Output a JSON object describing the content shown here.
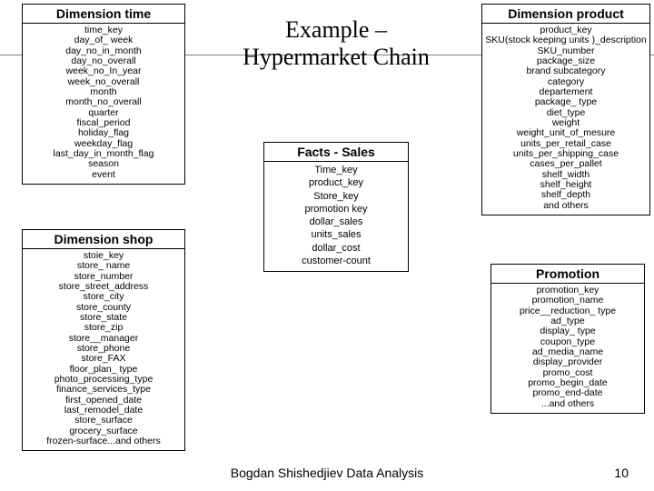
{
  "title": "Example –\nHypermarket Chain",
  "footer": "Bogdan Shishedjiev Data Analysis",
  "page_number": "10",
  "colors": {
    "bg": "#ffffff",
    "text": "#000000",
    "rule": "#808080"
  },
  "entities": {
    "time": {
      "heading": "Dimension time",
      "attrs": [
        "time_key",
        "day_of_ week",
        "day_no_in_month",
        "day_no_overall",
        "week_no_In_year",
        "week_no_overall",
        "month",
        "month_no_overall",
        "quarter",
        "fiscal_period",
        "holiday_flag",
        "weekday_flag",
        "last_day_in_month_flag",
        "season",
        "event"
      ]
    },
    "shop": {
      "heading": "Dimension shop",
      "attrs": [
        "stoie_key",
        "store_ name",
        "store_number",
        "store_street_address",
        "store_city",
        "store_county",
        "store_state",
        "store_zip",
        "store__manager",
        "store_phone",
        "store_FAX",
        "floor_plan_ type",
        "photo_processing_type",
        "finance_services_type",
        "first_opened_date",
        "last_remodel_date",
        "store_surface",
        "grocery_surface",
        "frozen-surface...and others"
      ]
    },
    "facts": {
      "heading": "Facts - Sales",
      "attrs": [
        "Time_key",
        "product_key",
        "Store_key",
        "promotion    key",
        "dollar_sales",
        "units_sales",
        "dollar_cost",
        "customer-count"
      ]
    },
    "product": {
      "heading": "Dimension product",
      "attrs": [
        "product_key",
        "SKU(stock keeping units )_description",
        "SKU_number",
        "package_size",
        "brand subcategory",
        "category",
        "departement",
        "package_ type",
        "diet_type",
        "weight",
        "weight_unit_of_mesure",
        "units_per_retail_case",
        "units_per_shipping_case",
        "cases_per_pallet",
        "shelf_width",
        "shelf_height",
        "shelf_depth",
        "and others"
      ]
    },
    "promo": {
      "heading": "Promotion",
      "attrs": [
        "promotion_key",
        "promotion_name",
        "price__reduction_ type",
        "ad_type",
        "display_ type",
        "coupon_type",
        "ad_media_name",
        "display_provider",
        "promo_cost",
        "promo_begin_date",
        "promo_end-date",
        "...and others"
      ]
    }
  }
}
